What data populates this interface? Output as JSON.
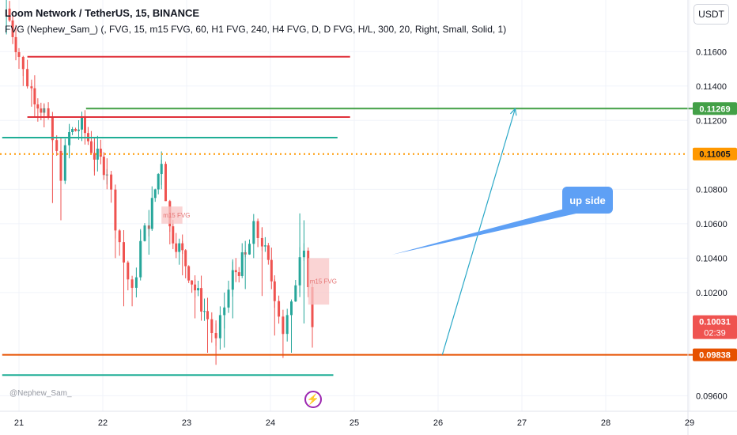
{
  "header": {
    "title": "Loom Network / TetherUS, 15, BINANCE",
    "indicator": "FVG (Nephew_Sam_) (, FVG, 15, m15 FVG, 60, H1 FVG, 240, H4 FVG, D, D FVG, H/L, 300, 20, Right, Small, Solid, 1)"
  },
  "currency": "USDT",
  "watermark": "@Nephew_Sam_",
  "colors": {
    "up": "#26a69a",
    "down": "#ef5350",
    "red_line": "#e0303a",
    "green_line": "#43a047",
    "teal_line": "#1fae96",
    "orange_line": "#e65100",
    "dotted": "#ff9800",
    "arrow": "#2aa8c7",
    "callout": "#5ea0f5"
  },
  "chart_data": {
    "type": "candlestick",
    "symbol": "Loom Network / TetherUS",
    "interval": "15",
    "exchange": "BINANCE",
    "x_ticks": [
      "21",
      "22",
      "23",
      "24",
      "25",
      "26",
      "27",
      "28",
      "29"
    ],
    "y_ticks": [
      "0.11600",
      "0.11400",
      "0.11200",
      "0.10800",
      "0.10600",
      "0.10400",
      "0.10200",
      "0.09600"
    ],
    "ylim": [
      0.0951,
      0.119
    ],
    "xlim": [
      20.8,
      29.05
    ],
    "price_series": {
      "x": [
        20.85,
        21.0,
        21.05,
        21.15,
        21.3,
        21.4,
        21.5,
        21.6,
        21.75,
        21.9,
        22.05,
        22.15,
        22.25,
        22.35,
        22.45,
        22.55,
        22.7,
        22.8,
        22.95,
        23.1,
        23.25,
        23.35,
        23.45,
        23.55,
        23.7,
        23.8,
        23.9,
        24.05,
        24.15,
        24.25,
        24.35,
        24.4,
        24.5
      ],
      "y": [
        0.1185,
        0.1158,
        0.1148,
        0.1138,
        0.1125,
        0.1108,
        0.109,
        0.1112,
        0.1117,
        0.11,
        0.1092,
        0.1062,
        0.1038,
        0.1018,
        0.1048,
        0.1062,
        0.1098,
        0.1057,
        0.1042,
        0.1022,
        0.1005,
        0.099,
        0.1012,
        0.103,
        0.104,
        0.1056,
        0.105,
        0.102,
        0.0998,
        0.101,
        0.1045,
        0.105,
        0.1
      ],
      "high": [
        0.119,
        0.1162,
        0.1152,
        0.1142,
        0.113,
        0.1114,
        0.1108,
        0.1118,
        0.1123,
        0.111,
        0.1098,
        0.1068,
        0.1046,
        0.1025,
        0.1056,
        0.1068,
        0.1102,
        0.1068,
        0.105,
        0.103,
        0.1016,
        0.1002,
        0.102,
        0.1038,
        0.105,
        0.106,
        0.1058,
        0.103,
        0.101,
        0.1016,
        0.1066,
        0.1062,
        0.1012
      ],
      "low": [
        0.117,
        0.115,
        0.114,
        0.1128,
        0.1116,
        0.1072,
        0.1062,
        0.1098,
        0.1108,
        0.1088,
        0.108,
        0.104,
        0.1012,
        0.1012,
        0.1032,
        0.1042,
        0.108,
        0.1048,
        0.103,
        0.1005,
        0.0985,
        0.0978,
        0.0988,
        0.1005,
        0.1022,
        0.104,
        0.1018,
        0.0995,
        0.0982,
        0.0985,
        0.102,
        0.1002,
        0.0988
      ]
    },
    "horizontal_lines": [
      {
        "name": "red-upper",
        "y": 0.1157,
        "x_start": 21.1,
        "x_end": 24.95,
        "color": "#e0303a"
      },
      {
        "name": "red-lower",
        "y": 0.1122,
        "x_start": 21.1,
        "x_end": 24.95,
        "color": "#e0303a"
      },
      {
        "name": "green-target",
        "y": 0.11269,
        "x_start": 21.8,
        "x_end": 29.05,
        "color": "#43a047"
      },
      {
        "name": "teal-upper",
        "y": 0.111,
        "x_start": 20.8,
        "x_end": 24.8,
        "color": "#1fae96"
      },
      {
        "name": "teal-lower",
        "y": 0.0972,
        "x_start": 20.8,
        "x_end": 24.75,
        "color": "#1fae96"
      },
      {
        "name": "orange-support",
        "y": 0.09838,
        "x_start": 20.8,
        "x_end": 29.05,
        "color": "#e65100"
      }
    ],
    "dotted_line": {
      "y": 0.11005,
      "color": "#ff9800"
    },
    "fvg_boxes": [
      {
        "label": "m15 FVG",
        "x1": 22.7,
        "x2": 22.95,
        "y1": 0.107,
        "y2": 0.106
      },
      {
        "label": "m15 FVG",
        "x1": 24.45,
        "x2": 24.7,
        "y1": 0.104,
        "y2": 0.1013
      }
    ],
    "arrow": {
      "x1": 26.05,
      "y1": 0.09838,
      "x2": 26.92,
      "y2": 0.11269
    },
    "callout": {
      "text": "up side",
      "anchor_x": 25.45,
      "anchor_y": 0.1042
    },
    "price_labels": [
      {
        "value": "0.11269",
        "y": 0.11269,
        "bg": "#43a047",
        "fg": "#ffffff"
      },
      {
        "value": "0.11005",
        "y": 0.11005,
        "bg": "#ff9800",
        "fg": "#131722"
      },
      {
        "value": "0.10031",
        "y": 0.10031,
        "bg": "#ef5350",
        "fg": "#ffffff",
        "sub": "02:39"
      },
      {
        "value": "0.09838",
        "y": 0.09838,
        "bg": "#e65100",
        "fg": "#ffffff"
      }
    ]
  }
}
